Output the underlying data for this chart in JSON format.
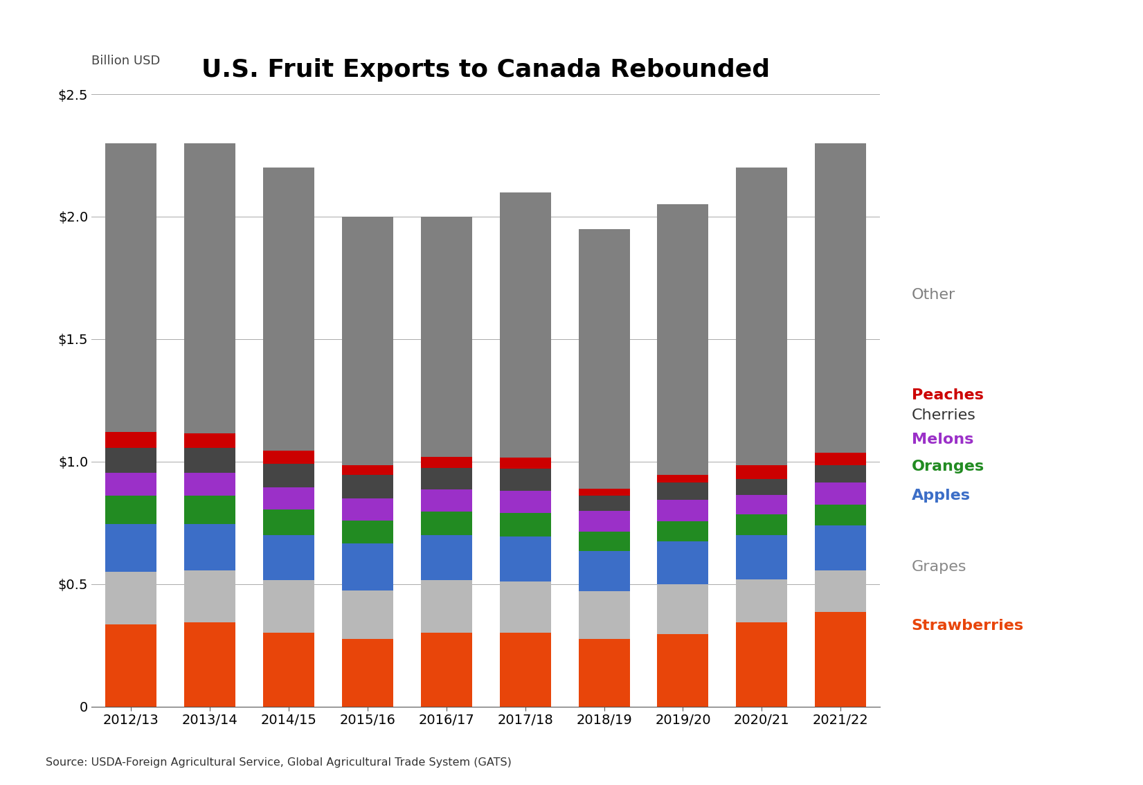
{
  "title": "U.S. Fruit Exports to Canada Rebounded",
  "ylabel": "Billion USD",
  "source": "Source: USDA-Foreign Agricultural Service, Global Agricultural Trade System (GATS)",
  "years": [
    "2012/13",
    "2013/14",
    "2014/15",
    "2015/16",
    "2016/17",
    "2017/18",
    "2018/19",
    "2019/20",
    "2020/21",
    "2021/22"
  ],
  "categories": [
    "Strawberries",
    "Grapes",
    "Apples",
    "Oranges",
    "Melons",
    "Cherries",
    "Peaches",
    "Other"
  ],
  "colors": [
    "#E8450A",
    "#B8B8B8",
    "#3C6EC7",
    "#228B22",
    "#9B30C8",
    "#454545",
    "#CC0000",
    "#808080"
  ],
  "data": {
    "Strawberries": [
      0.335,
      0.345,
      0.3,
      0.275,
      0.3,
      0.3,
      0.275,
      0.295,
      0.345,
      0.385
    ],
    "Grapes": [
      0.215,
      0.21,
      0.215,
      0.2,
      0.215,
      0.21,
      0.195,
      0.205,
      0.175,
      0.17
    ],
    "Apples": [
      0.195,
      0.19,
      0.185,
      0.19,
      0.185,
      0.185,
      0.165,
      0.175,
      0.18,
      0.185
    ],
    "Oranges": [
      0.115,
      0.115,
      0.105,
      0.095,
      0.095,
      0.095,
      0.08,
      0.08,
      0.085,
      0.085
    ],
    "Melons": [
      0.095,
      0.095,
      0.09,
      0.09,
      0.09,
      0.09,
      0.085,
      0.09,
      0.08,
      0.09
    ],
    "Cherries": [
      0.1,
      0.1,
      0.095,
      0.095,
      0.09,
      0.09,
      0.06,
      0.07,
      0.065,
      0.07
    ],
    "Peaches": [
      0.065,
      0.06,
      0.055,
      0.04,
      0.045,
      0.045,
      0.03,
      0.03,
      0.055,
      0.05
    ],
    "Other": [
      1.18,
      1.185,
      1.155,
      1.015,
      0.98,
      1.085,
      1.06,
      1.105,
      1.215,
      1.265
    ]
  },
  "ylim": [
    0,
    2.5
  ],
  "yticks": [
    0,
    0.5,
    1.0,
    1.5,
    2.0,
    2.5
  ],
  "ytick_labels": [
    "0",
    "$0.5",
    "$1.0",
    "$1.5",
    "$2.0",
    "$2.5"
  ],
  "background_color": "#FFFFFF",
  "title_fontsize": 26,
  "label_fontsize": 13,
  "tick_fontsize": 14,
  "bar_width": 0.65,
  "legend_items": [
    {
      "label": "Other",
      "color": "#808080",
      "bold": false
    },
    {
      "label": "Peaches",
      "color": "#CC0000",
      "bold": true
    },
    {
      "label": "Cherries",
      "color": "#333333",
      "bold": false
    },
    {
      "label": "Melons",
      "color": "#9B30C8",
      "bold": true
    },
    {
      "label": "Oranges",
      "color": "#228B22",
      "bold": true
    },
    {
      "label": "Apples",
      "color": "#3C6EC7",
      "bold": true
    },
    {
      "label": "Grapes",
      "color": "#888888",
      "bold": false
    },
    {
      "label": "Strawberries",
      "color": "#E8450A",
      "bold": true
    }
  ],
  "legend_y_positions": [
    1.68,
    1.27,
    1.19,
    1.09,
    0.98,
    0.86,
    0.57,
    0.33
  ]
}
